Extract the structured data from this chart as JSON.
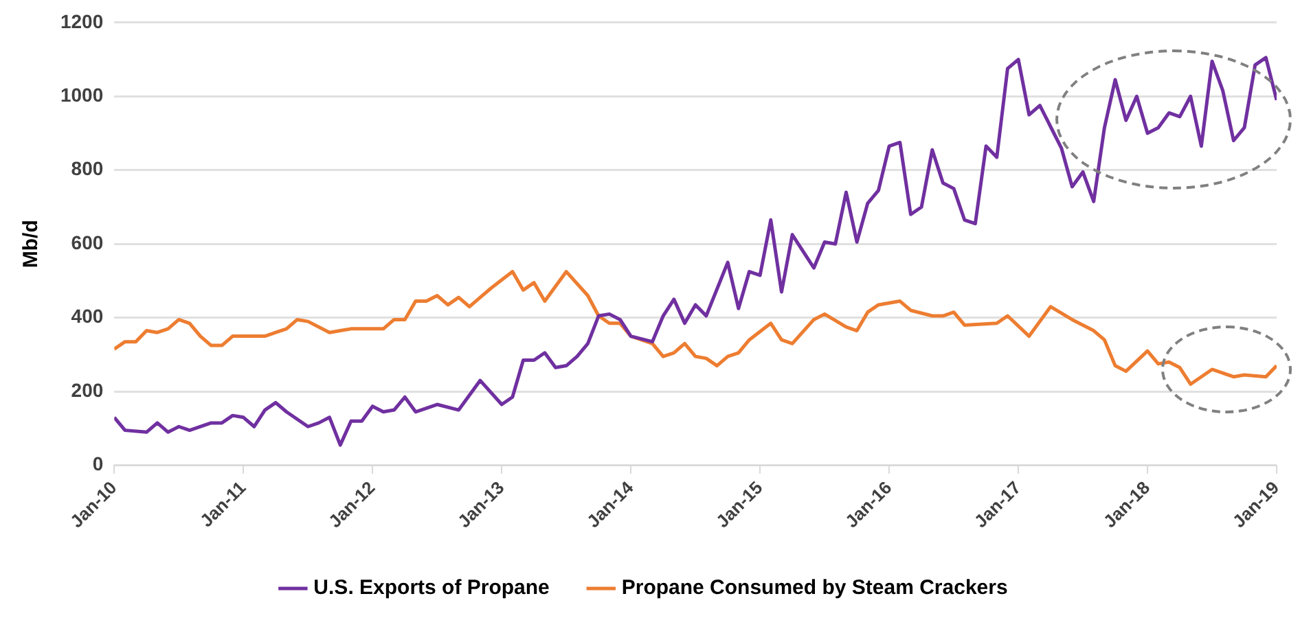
{
  "chart_data": {
    "type": "line",
    "ylabel": "Mb/d",
    "legend": "bottom",
    "grid": "y",
    "marker": "none",
    "line_style": "solid",
    "xlim": [
      "2010-01",
      "2019-01"
    ],
    "xticks": [
      {
        "value": "2010-01",
        "label": "Jan-10"
      },
      {
        "value": "2011-01",
        "label": "Jan-11"
      },
      {
        "value": "2012-01",
        "label": "Jan-12"
      },
      {
        "value": "2013-01",
        "label": "Jan-13"
      },
      {
        "value": "2014-01",
        "label": "Jan-14"
      },
      {
        "value": "2015-01",
        "label": "Jan-15"
      },
      {
        "value": "2016-01",
        "label": "Jan-16"
      },
      {
        "value": "2017-01",
        "label": "Jan-17"
      },
      {
        "value": "2018-01",
        "label": "Jan-18"
      },
      {
        "value": "2019-01",
        "label": "Jan-19"
      }
    ],
    "ylim": [
      0,
      1200
    ],
    "yticks": [
      0,
      200,
      400,
      600,
      800,
      1000,
      1200
    ],
    "series": [
      {
        "name": "U.S. Exports of Propane",
        "color": "#7030a0",
        "x": [
          "2010-01",
          "2010-02",
          "2010-04",
          "2010-05",
          "2010-06",
          "2010-07",
          "2010-08",
          "2010-10",
          "2010-11",
          "2010-12",
          "2011-01",
          "2011-02",
          "2011-03",
          "2011-04",
          "2011-05",
          "2011-07",
          "2011-08",
          "2011-09",
          "2011-10",
          "2011-11",
          "2011-12",
          "2012-01",
          "2012-02",
          "2012-03",
          "2012-04",
          "2012-05",
          "2012-07",
          "2012-09",
          "2012-11",
          "2013-01",
          "2013-02",
          "2013-03",
          "2013-04",
          "2013-05",
          "2013-06",
          "2013-07",
          "2013-08",
          "2013-09",
          "2013-10",
          "2013-11",
          "2013-12",
          "2014-01",
          "2014-03",
          "2014-04",
          "2014-05",
          "2014-06",
          "2014-07",
          "2014-08",
          "2014-10",
          "2014-11",
          "2014-12",
          "2015-01",
          "2015-02",
          "2015-03",
          "2015-04",
          "2015-06",
          "2015-07",
          "2015-08",
          "2015-09",
          "2015-10",
          "2015-11",
          "2015-12",
          "2016-01",
          "2016-02",
          "2016-03",
          "2016-04",
          "2016-05",
          "2016-06",
          "2016-07",
          "2016-08",
          "2016-09",
          "2016-10",
          "2016-11",
          "2016-12",
          "2017-01",
          "2017-02",
          "2017-03",
          "2017-05",
          "2017-06",
          "2017-07",
          "2017-08",
          "2017-09",
          "2017-10",
          "2017-11",
          "2017-12",
          "2018-01",
          "2018-02",
          "2018-03",
          "2018-04",
          "2018-05",
          "2018-06",
          "2018-07",
          "2018-08",
          "2018-09",
          "2018-10",
          "2018-11",
          "2018-12",
          "2019-01"
        ],
        "values": [
          130,
          95,
          90,
          115,
          90,
          105,
          95,
          115,
          115,
          135,
          130,
          105,
          150,
          170,
          145,
          105,
          115,
          130,
          55,
          120,
          120,
          160,
          145,
          150,
          185,
          145,
          165,
          150,
          230,
          165,
          185,
          285,
          285,
          305,
          265,
          270,
          295,
          330,
          405,
          410,
          395,
          350,
          335,
          405,
          450,
          385,
          435,
          405,
          550,
          425,
          525,
          515,
          665,
          470,
          625,
          535,
          605,
          600,
          740,
          605,
          710,
          745,
          865,
          875,
          680,
          700,
          855,
          765,
          750,
          665,
          655,
          865,
          835,
          1075,
          1100,
          950,
          975,
          860,
          755,
          795,
          715,
          915,
          1045,
          935,
          1000,
          900,
          915,
          955,
          945,
          1000,
          865,
          1095,
          1015,
          880,
          915,
          1085,
          1105,
          990
        ]
      },
      {
        "name": "Propane Consumed by Steam Crackers",
        "color": "#ed7d31",
        "x": [
          "2010-01",
          "2010-02",
          "2010-03",
          "2010-04",
          "2010-05",
          "2010-06",
          "2010-07",
          "2010-08",
          "2010-09",
          "2010-10",
          "2010-11",
          "2010-12",
          "2011-03",
          "2011-04",
          "2011-05",
          "2011-06",
          "2011-07",
          "2011-09",
          "2011-10",
          "2011-11",
          "2012-02",
          "2012-03",
          "2012-04",
          "2012-05",
          "2012-06",
          "2012-07",
          "2012-08",
          "2012-09",
          "2012-10",
          "2012-11",
          "2012-12",
          "2013-02",
          "2013-03",
          "2013-04",
          "2013-05",
          "2013-07",
          "2013-09",
          "2013-10",
          "2013-11",
          "2013-12",
          "2014-01",
          "2014-03",
          "2014-04",
          "2014-05",
          "2014-06",
          "2014-07",
          "2014-08",
          "2014-09",
          "2014-10",
          "2014-11",
          "2014-12",
          "2015-02",
          "2015-03",
          "2015-04",
          "2015-06",
          "2015-07",
          "2015-09",
          "2015-10",
          "2015-11",
          "2015-12",
          "2016-02",
          "2016-03",
          "2016-05",
          "2016-06",
          "2016-07",
          "2016-08",
          "2016-11",
          "2016-12",
          "2017-02",
          "2017-04",
          "2017-06",
          "2017-08",
          "2017-09",
          "2017-10",
          "2017-11",
          "2018-01",
          "2018-02",
          "2018-03",
          "2018-04",
          "2018-05",
          "2018-07",
          "2018-09",
          "2018-10",
          "2018-12",
          "2019-01"
        ],
        "values": [
          315,
          335,
          335,
          365,
          360,
          370,
          395,
          385,
          350,
          325,
          325,
          350,
          350,
          360,
          370,
          395,
          390,
          360,
          365,
          370,
          370,
          395,
          395,
          445,
          445,
          460,
          435,
          455,
          430,
          455,
          480,
          525,
          475,
          495,
          445,
          525,
          460,
          405,
          385,
          385,
          350,
          330,
          295,
          305,
          330,
          295,
          290,
          270,
          295,
          305,
          340,
          385,
          340,
          330,
          395,
          410,
          375,
          365,
          415,
          435,
          445,
          420,
          405,
          405,
          415,
          380,
          385,
          405,
          350,
          430,
          395,
          365,
          340,
          270,
          255,
          310,
          275,
          280,
          265,
          220,
          260,
          240,
          245,
          240,
          270
        ]
      }
    ]
  }
}
